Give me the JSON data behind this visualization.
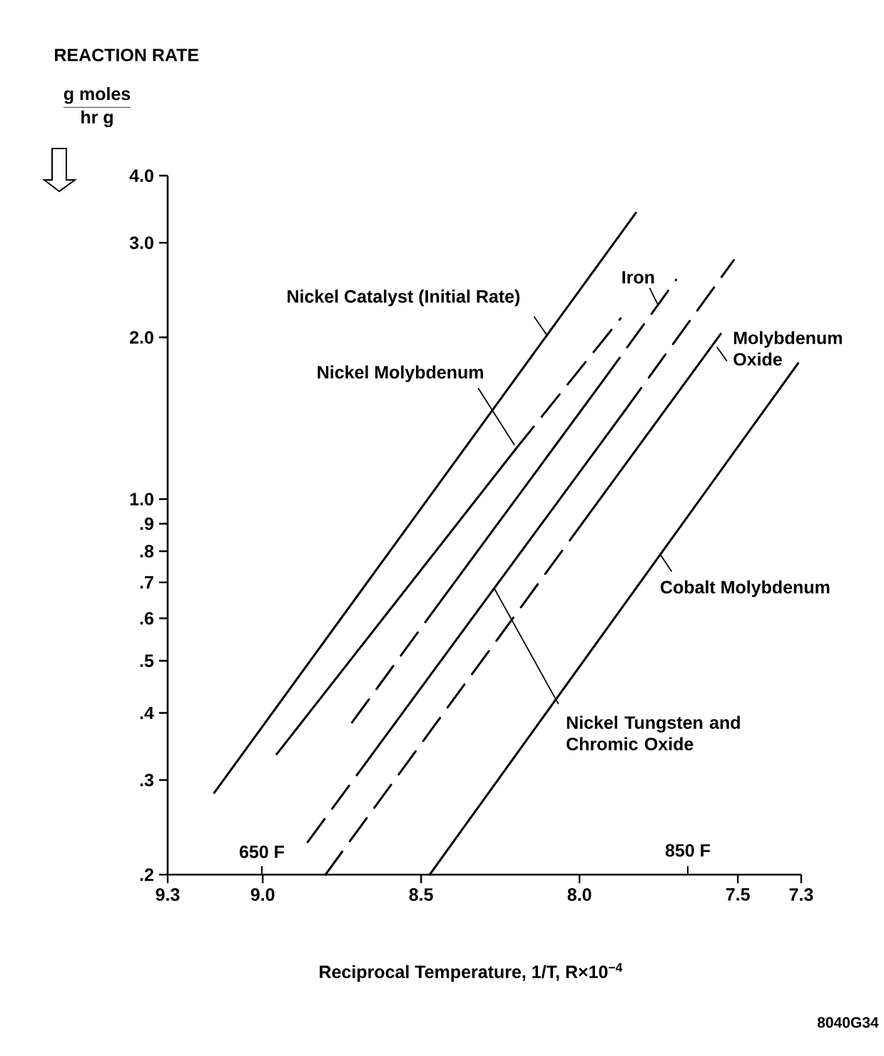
{
  "chart_data": {
    "type": "line",
    "title": "REACTION RATE",
    "ylabel": "\\frac{\\mathbf{g\\ moles}}{\\mathbf{hr\\ g}}",
    "xlabel": "Reciprocal Temperature, 1/T, R×10$^{−4}$",
    "log": "y",
    "xlim": [
      9.3,
      7.3
    ],
    "ylim": [
      0.2,
      4
    ],
    "xticks": [
      9.3,
      {
        "value": 9.0,
        "label": "9.0"
      },
      8.5,
      {
        "value": 8.0,
        "label": "8.0"
      },
      7.5,
      7.3
    ],
    "yticks": [
      {
        "value": 4,
        "label": "4.0"
      },
      {
        "value": 3,
        "label": "3.0"
      },
      {
        "value": 2,
        "label": "2.0"
      },
      {
        "value": 1,
        "label": "1.0"
      },
      {
        "value": 0.9,
        "label": ".9"
      },
      {
        "value": 0.8,
        "label": ".8"
      },
      {
        "value": 0.7,
        "label": ".7"
      },
      {
        "value": 0.6,
        "label": ".6"
      },
      {
        "value": 0.5,
        "label": ".5"
      },
      {
        "value": 0.4,
        "label": ".4"
      },
      {
        "value": 0.3,
        "label": ".3"
      },
      {
        "value": 0.2,
        "label": ".2"
      }
    ],
    "series": [
      {
        "color": "#000000",
        "line_style": "solid",
        "x": [
          9.153,
          7.822
        ],
        "values": [
          0.284,
          3.41
        ]
      },
      {
        "color": "#000000",
        "line_style": "solid",
        "x": [
          8.956,
          8.201
        ],
        "values": [
          0.335,
          1.24
        ]
      },
      {
        "color": "#000000",
        "line_style": "dashed",
        "x": [
          8.201,
          7.87
        ],
        "values": [
          1.24,
          2.17
        ]
      },
      {
        "color": "#000000",
        "line_style": "dashed",
        "x": [
          8.718,
          8.462
        ],
        "values": [
          0.384,
          0.618
        ]
      },
      {
        "color": "#000000",
        "line_style": "solid",
        "x": [
          8.462,
          7.926
        ],
        "values": [
          0.618,
          1.66
        ]
      },
      {
        "color": "#000000",
        "line_style": "dashed",
        "x": [
          7.926,
          7.695
        ],
        "values": [
          1.66,
          2.56
        ]
      },
      {
        "color": "#000000",
        "line_style": "dashed",
        "x": [
          8.858,
          8.661
        ],
        "values": [
          0.23,
          0.331
        ]
      },
      {
        "color": "#000000",
        "line_style": "solid",
        "x": [
          8.661,
          7.858
        ],
        "values": [
          0.331,
          1.458
        ]
      },
      {
        "color": "#000000",
        "line_style": "dashed",
        "x": [
          7.858,
          7.513
        ],
        "values": [
          1.458,
          2.785
        ]
      },
      {
        "color": "#000000",
        "line_style": "dashed",
        "x": [
          8.802,
          7.985
        ],
        "values": [
          0.2,
          0.912
        ]
      },
      {
        "color": "#000000",
        "line_style": "solid",
        "x": [
          7.985,
          7.554
        ],
        "values": [
          0.912,
          2.03
        ]
      },
      {
        "color": "#000000",
        "line_style": "solid",
        "x": [
          8.473,
          7.31
        ],
        "values": [
          0.2,
          1.79
        ]
      }
    ],
    "annotations": [
      {
        "text": "Nickel Catalyst (Initial Rate)",
        "x": 8.103,
        "y": 2.02
      },
      {
        "text": "Nickel Molybdenum",
        "x": 8.205,
        "y": 1.26
      },
      {
        "text": "Iron",
        "x": 7.754,
        "y": 2.31
      },
      {
        "text": "Molybdenum Oxide",
        "x": 7.566,
        "y": 1.92
      },
      {
        "text": "Nickel Tungsten and Chromic Oxide",
        "x": 8.269,
        "y": 0.682
      },
      {
        "text": "Cobalt Molybdenum",
        "x": 7.745,
        "y": 0.789
      },
      "650 F",
      "850 F",
      "8040G34"
    ]
  }
}
